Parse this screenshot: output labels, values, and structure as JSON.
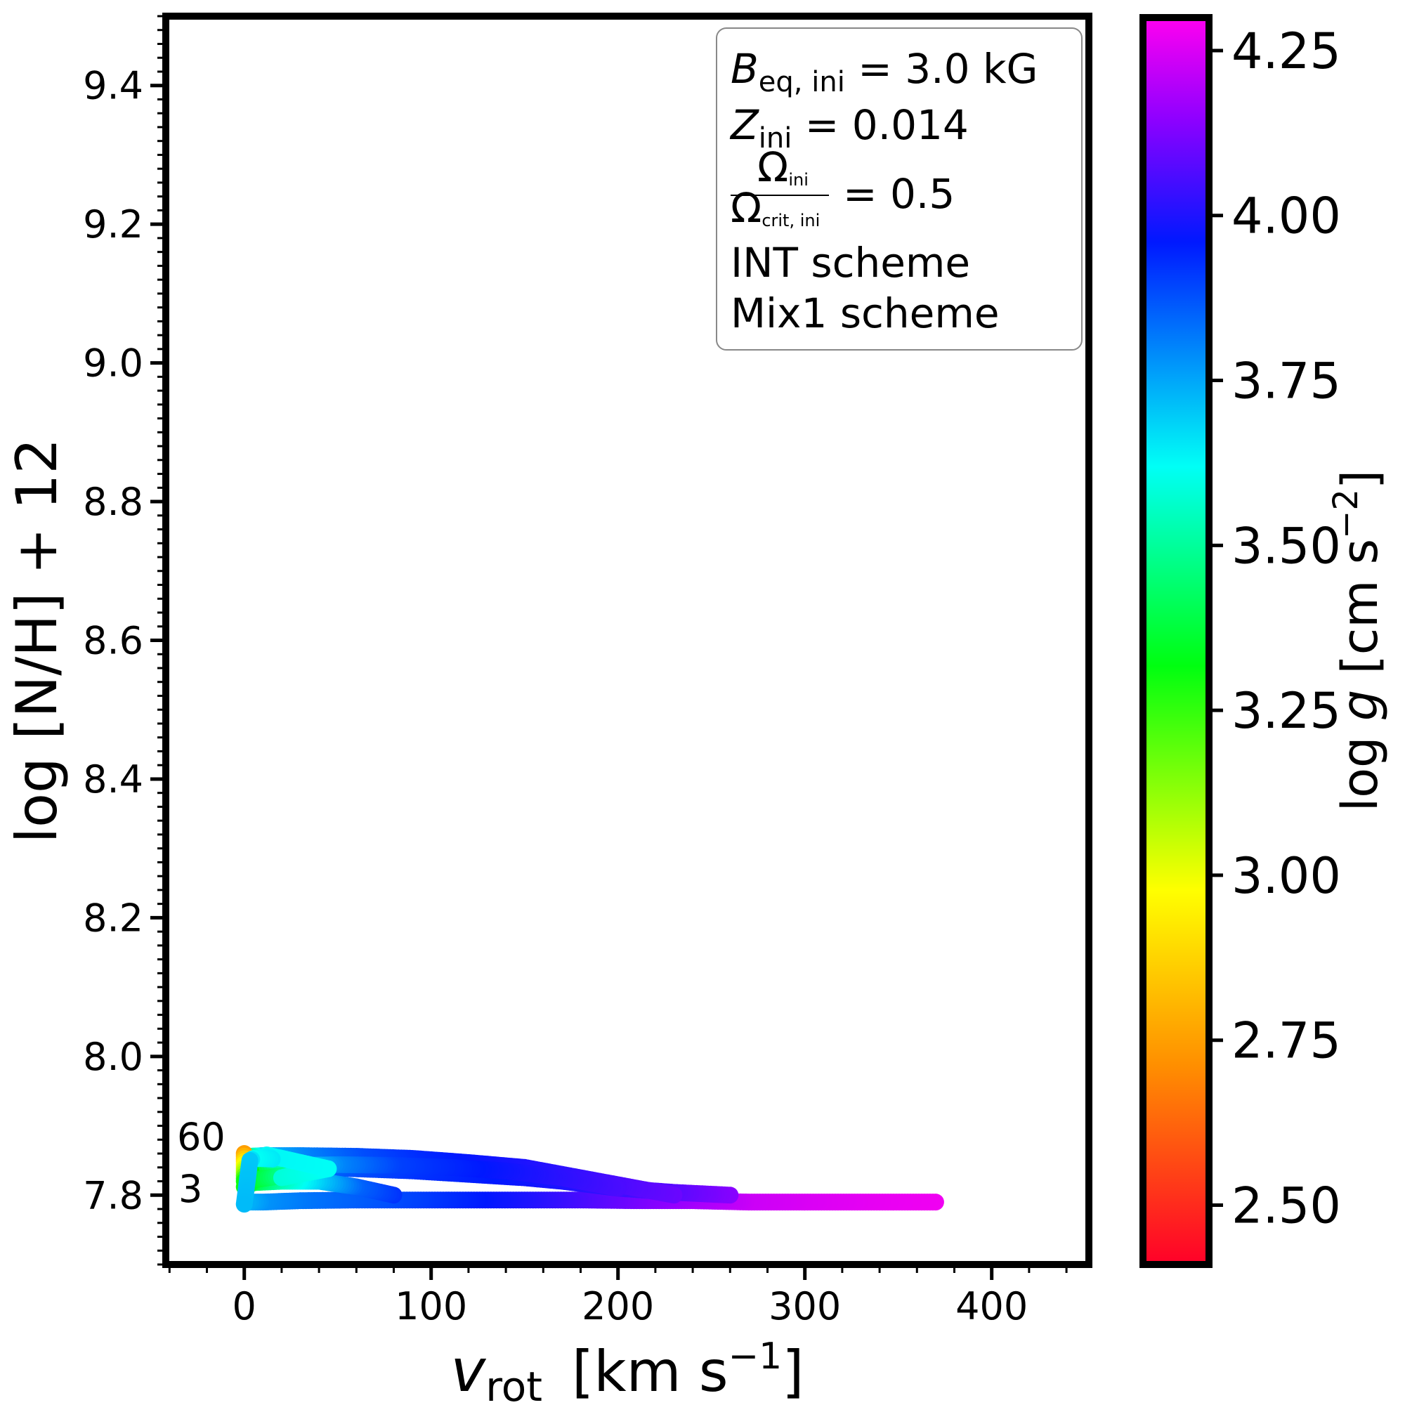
{
  "chart_data": {
    "type": "scatter",
    "xlabel": {
      "main": "v",
      "sub": "rot",
      "unit": "[km s",
      "exp": "−1",
      "close": "]"
    },
    "ylabel": "log [N/H] + 12",
    "xlim": [
      -42,
      452
    ],
    "ylim": [
      7.7,
      9.5
    ],
    "xticks": [
      "0",
      "100",
      "200",
      "300",
      "400"
    ],
    "yticks": [
      "7.8",
      "8.0",
      "8.2",
      "8.4",
      "8.6",
      "8.8",
      "9.0",
      "9.2",
      "9.4"
    ],
    "colorbar": {
      "label": "log g [cm s−2]",
      "label_parts": {
        "pre": "log ",
        "var": "g",
        "unit": " [cm s",
        "exp": "−2",
        "close": "]"
      },
      "range": [
        2.41,
        4.3
      ],
      "ticks": [
        "2.50",
        "2.75",
        "3.00",
        "3.25",
        "3.50",
        "3.75",
        "4.00",
        "4.25"
      ],
      "colormap": "gist_rainbow_r"
    },
    "legend": {
      "line1": {
        "var": "B",
        "sub": "eq, ini",
        "value": " =  3.0 kG"
      },
      "line2": {
        "var": "Z",
        "sub": "ini",
        "value": " =  0.014"
      },
      "line3": {
        "num": "Ω",
        "num_sub": "ini",
        "den": "Ω",
        "den_sub": "crit, ini",
        "value": "= 0.5"
      },
      "line4": "INT scheme",
      "line5": "Mix1 scheme",
      "placement": "top-right"
    },
    "track_labels": [
      "60",
      "3"
    ],
    "series": [
      {
        "points": [
          [
            370,
            7.79,
            4.28
          ],
          [
            340,
            7.79,
            4.27
          ],
          [
            300,
            7.79,
            4.25
          ],
          [
            270,
            7.79,
            4.23
          ],
          [
            240,
            7.792,
            4.18
          ],
          [
            210,
            7.792,
            4.12
          ],
          [
            180,
            7.793,
            4.06
          ],
          [
            150,
            7.793,
            4.0
          ],
          [
            120,
            7.793,
            3.95
          ],
          [
            90,
            7.793,
            3.9
          ],
          [
            60,
            7.793,
            3.86
          ],
          [
            30,
            7.792,
            3.82
          ],
          [
            10,
            7.79,
            3.78
          ],
          [
            2,
            7.79,
            3.74
          ]
        ]
      },
      {
        "points": [
          [
            260,
            7.8,
            4.14
          ],
          [
            230,
            7.804,
            4.08
          ],
          [
            200,
            7.81,
            4.04
          ],
          [
            170,
            7.82,
            4.0
          ],
          [
            150,
            7.825,
            3.98
          ],
          [
            120,
            7.83,
            3.95
          ],
          [
            90,
            7.835,
            3.92
          ],
          [
            60,
            7.838,
            3.88
          ],
          [
            30,
            7.84,
            3.82
          ],
          [
            10,
            7.84,
            3.75
          ],
          [
            2,
            7.84,
            3.6
          ]
        ]
      },
      {
        "points": [
          [
            230,
            7.8,
            4.1
          ],
          [
            200,
            7.815,
            4.06
          ],
          [
            170,
            7.83,
            4.02
          ],
          [
            150,
            7.84,
            4.0
          ],
          [
            120,
            7.847,
            3.97
          ],
          [
            90,
            7.853,
            3.93
          ],
          [
            60,
            7.856,
            3.88
          ],
          [
            30,
            7.857,
            3.8
          ],
          [
            10,
            7.857,
            3.72
          ],
          [
            2,
            7.856,
            3.5
          ]
        ]
      },
      {
        "points": [
          [
            200,
            7.81,
            4.06
          ],
          [
            170,
            7.825,
            4.02
          ],
          [
            140,
            7.835,
            3.98
          ],
          [
            110,
            7.84,
            3.94
          ],
          [
            80,
            7.843,
            3.9
          ],
          [
            50,
            7.844,
            3.8
          ],
          [
            20,
            7.842,
            3.6
          ],
          [
            5,
            7.835,
            3.4
          ],
          [
            1,
            7.83,
            3.15
          ]
        ]
      },
      {
        "points": [
          [
            80,
            7.8,
            3.92
          ],
          [
            60,
            7.812,
            3.85
          ],
          [
            40,
            7.82,
            3.7
          ],
          [
            20,
            7.82,
            3.55
          ],
          [
            5,
            7.818,
            3.4
          ],
          [
            0,
            7.812,
            3.3
          ]
        ]
      },
      {
        "points": [
          [
            0,
            7.86,
            2.75
          ],
          [
            0,
            7.845,
            2.95
          ],
          [
            0,
            7.832,
            3.1
          ],
          [
            0,
            7.82,
            3.3
          ],
          [
            30,
            7.832,
            3.55
          ],
          [
            20,
            7.825,
            3.58
          ],
          [
            45,
            7.838,
            3.62
          ],
          [
            12,
            7.858,
            3.63
          ],
          [
            15,
            7.852,
            3.65
          ],
          [
            5,
            7.853,
            3.62
          ],
          [
            3,
            7.85,
            3.7
          ],
          [
            0,
            7.787,
            3.72
          ]
        ]
      }
    ]
  }
}
